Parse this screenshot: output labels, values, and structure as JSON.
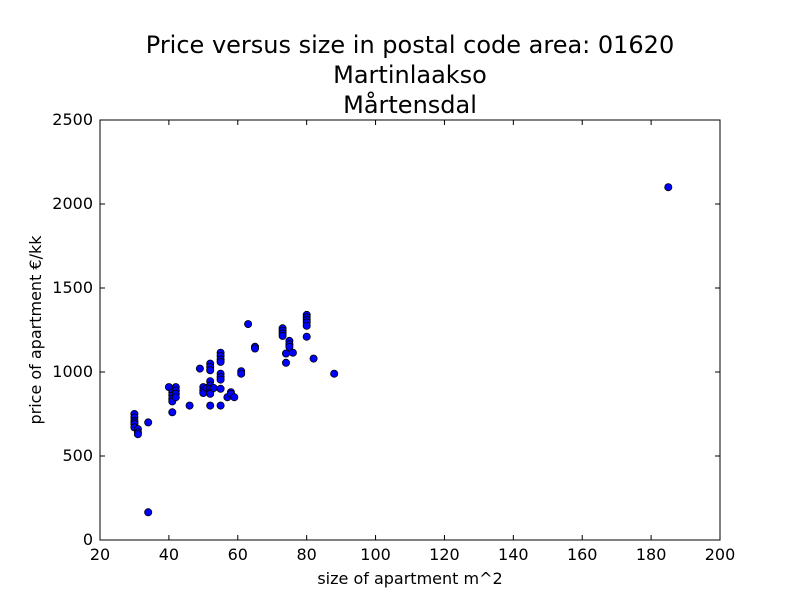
{
  "chart_data": {
    "type": "scatter",
    "title_lines": [
      "Price versus size in postal code area: 01620",
      "Martinlaakso",
      "Mårtensdal"
    ],
    "xlabel": "size of apartment m^2",
    "ylabel": "price of apartment €/kk",
    "xlim": [
      20,
      200
    ],
    "ylim": [
      0,
      2500
    ],
    "xticks": [
      20,
      40,
      60,
      80,
      100,
      120,
      140,
      160,
      180,
      200
    ],
    "yticks": [
      0,
      500,
      1000,
      1500,
      2000,
      2500
    ],
    "grid": false,
    "marker_color": "#0000ff",
    "marker_edge_color": "#000000",
    "points": [
      {
        "x": 30,
        "y": 750
      },
      {
        "x": 30,
        "y": 730
      },
      {
        "x": 30,
        "y": 710
      },
      {
        "x": 30,
        "y": 700
      },
      {
        "x": 30,
        "y": 690
      },
      {
        "x": 30,
        "y": 670
      },
      {
        "x": 31,
        "y": 660
      },
      {
        "x": 31,
        "y": 640
      },
      {
        "x": 31,
        "y": 630
      },
      {
        "x": 34,
        "y": 700
      },
      {
        "x": 34,
        "y": 165
      },
      {
        "x": 40,
        "y": 910
      },
      {
        "x": 41,
        "y": 880
      },
      {
        "x": 41,
        "y": 860
      },
      {
        "x": 41,
        "y": 840
      },
      {
        "x": 41,
        "y": 825
      },
      {
        "x": 41,
        "y": 760
      },
      {
        "x": 42,
        "y": 910
      },
      {
        "x": 42,
        "y": 890
      },
      {
        "x": 42,
        "y": 870
      },
      {
        "x": 42,
        "y": 850
      },
      {
        "x": 46,
        "y": 800
      },
      {
        "x": 49,
        "y": 1020
      },
      {
        "x": 50,
        "y": 910
      },
      {
        "x": 50,
        "y": 890
      },
      {
        "x": 50,
        "y": 875
      },
      {
        "x": 51,
        "y": 905
      },
      {
        "x": 52,
        "y": 1050
      },
      {
        "x": 52,
        "y": 1030
      },
      {
        "x": 52,
        "y": 1010
      },
      {
        "x": 52,
        "y": 945
      },
      {
        "x": 52,
        "y": 920
      },
      {
        "x": 52,
        "y": 900
      },
      {
        "x": 52,
        "y": 880
      },
      {
        "x": 52,
        "y": 870
      },
      {
        "x": 52,
        "y": 800
      },
      {
        "x": 53,
        "y": 905
      },
      {
        "x": 55,
        "y": 1115
      },
      {
        "x": 55,
        "y": 1095
      },
      {
        "x": 55,
        "y": 1075
      },
      {
        "x": 55,
        "y": 1060
      },
      {
        "x": 55,
        "y": 990
      },
      {
        "x": 55,
        "y": 970
      },
      {
        "x": 55,
        "y": 955
      },
      {
        "x": 55,
        "y": 900
      },
      {
        "x": 55,
        "y": 800
      },
      {
        "x": 57,
        "y": 850
      },
      {
        "x": 58,
        "y": 880
      },
      {
        "x": 58,
        "y": 870
      },
      {
        "x": 59,
        "y": 850
      },
      {
        "x": 61,
        "y": 1005
      },
      {
        "x": 61,
        "y": 990
      },
      {
        "x": 63,
        "y": 1285
      },
      {
        "x": 65,
        "y": 1150
      },
      {
        "x": 65,
        "y": 1140
      },
      {
        "x": 73,
        "y": 1260
      },
      {
        "x": 73,
        "y": 1245
      },
      {
        "x": 73,
        "y": 1230
      },
      {
        "x": 73,
        "y": 1215
      },
      {
        "x": 74,
        "y": 1110
      },
      {
        "x": 74,
        "y": 1055
      },
      {
        "x": 75,
        "y": 1185
      },
      {
        "x": 75,
        "y": 1165
      },
      {
        "x": 75,
        "y": 1150
      },
      {
        "x": 76,
        "y": 1115
      },
      {
        "x": 80,
        "y": 1340
      },
      {
        "x": 80,
        "y": 1325
      },
      {
        "x": 80,
        "y": 1310
      },
      {
        "x": 80,
        "y": 1295
      },
      {
        "x": 80,
        "y": 1275
      },
      {
        "x": 80,
        "y": 1210
      },
      {
        "x": 82,
        "y": 1080
      },
      {
        "x": 88,
        "y": 990
      },
      {
        "x": 185,
        "y": 2100
      }
    ]
  }
}
